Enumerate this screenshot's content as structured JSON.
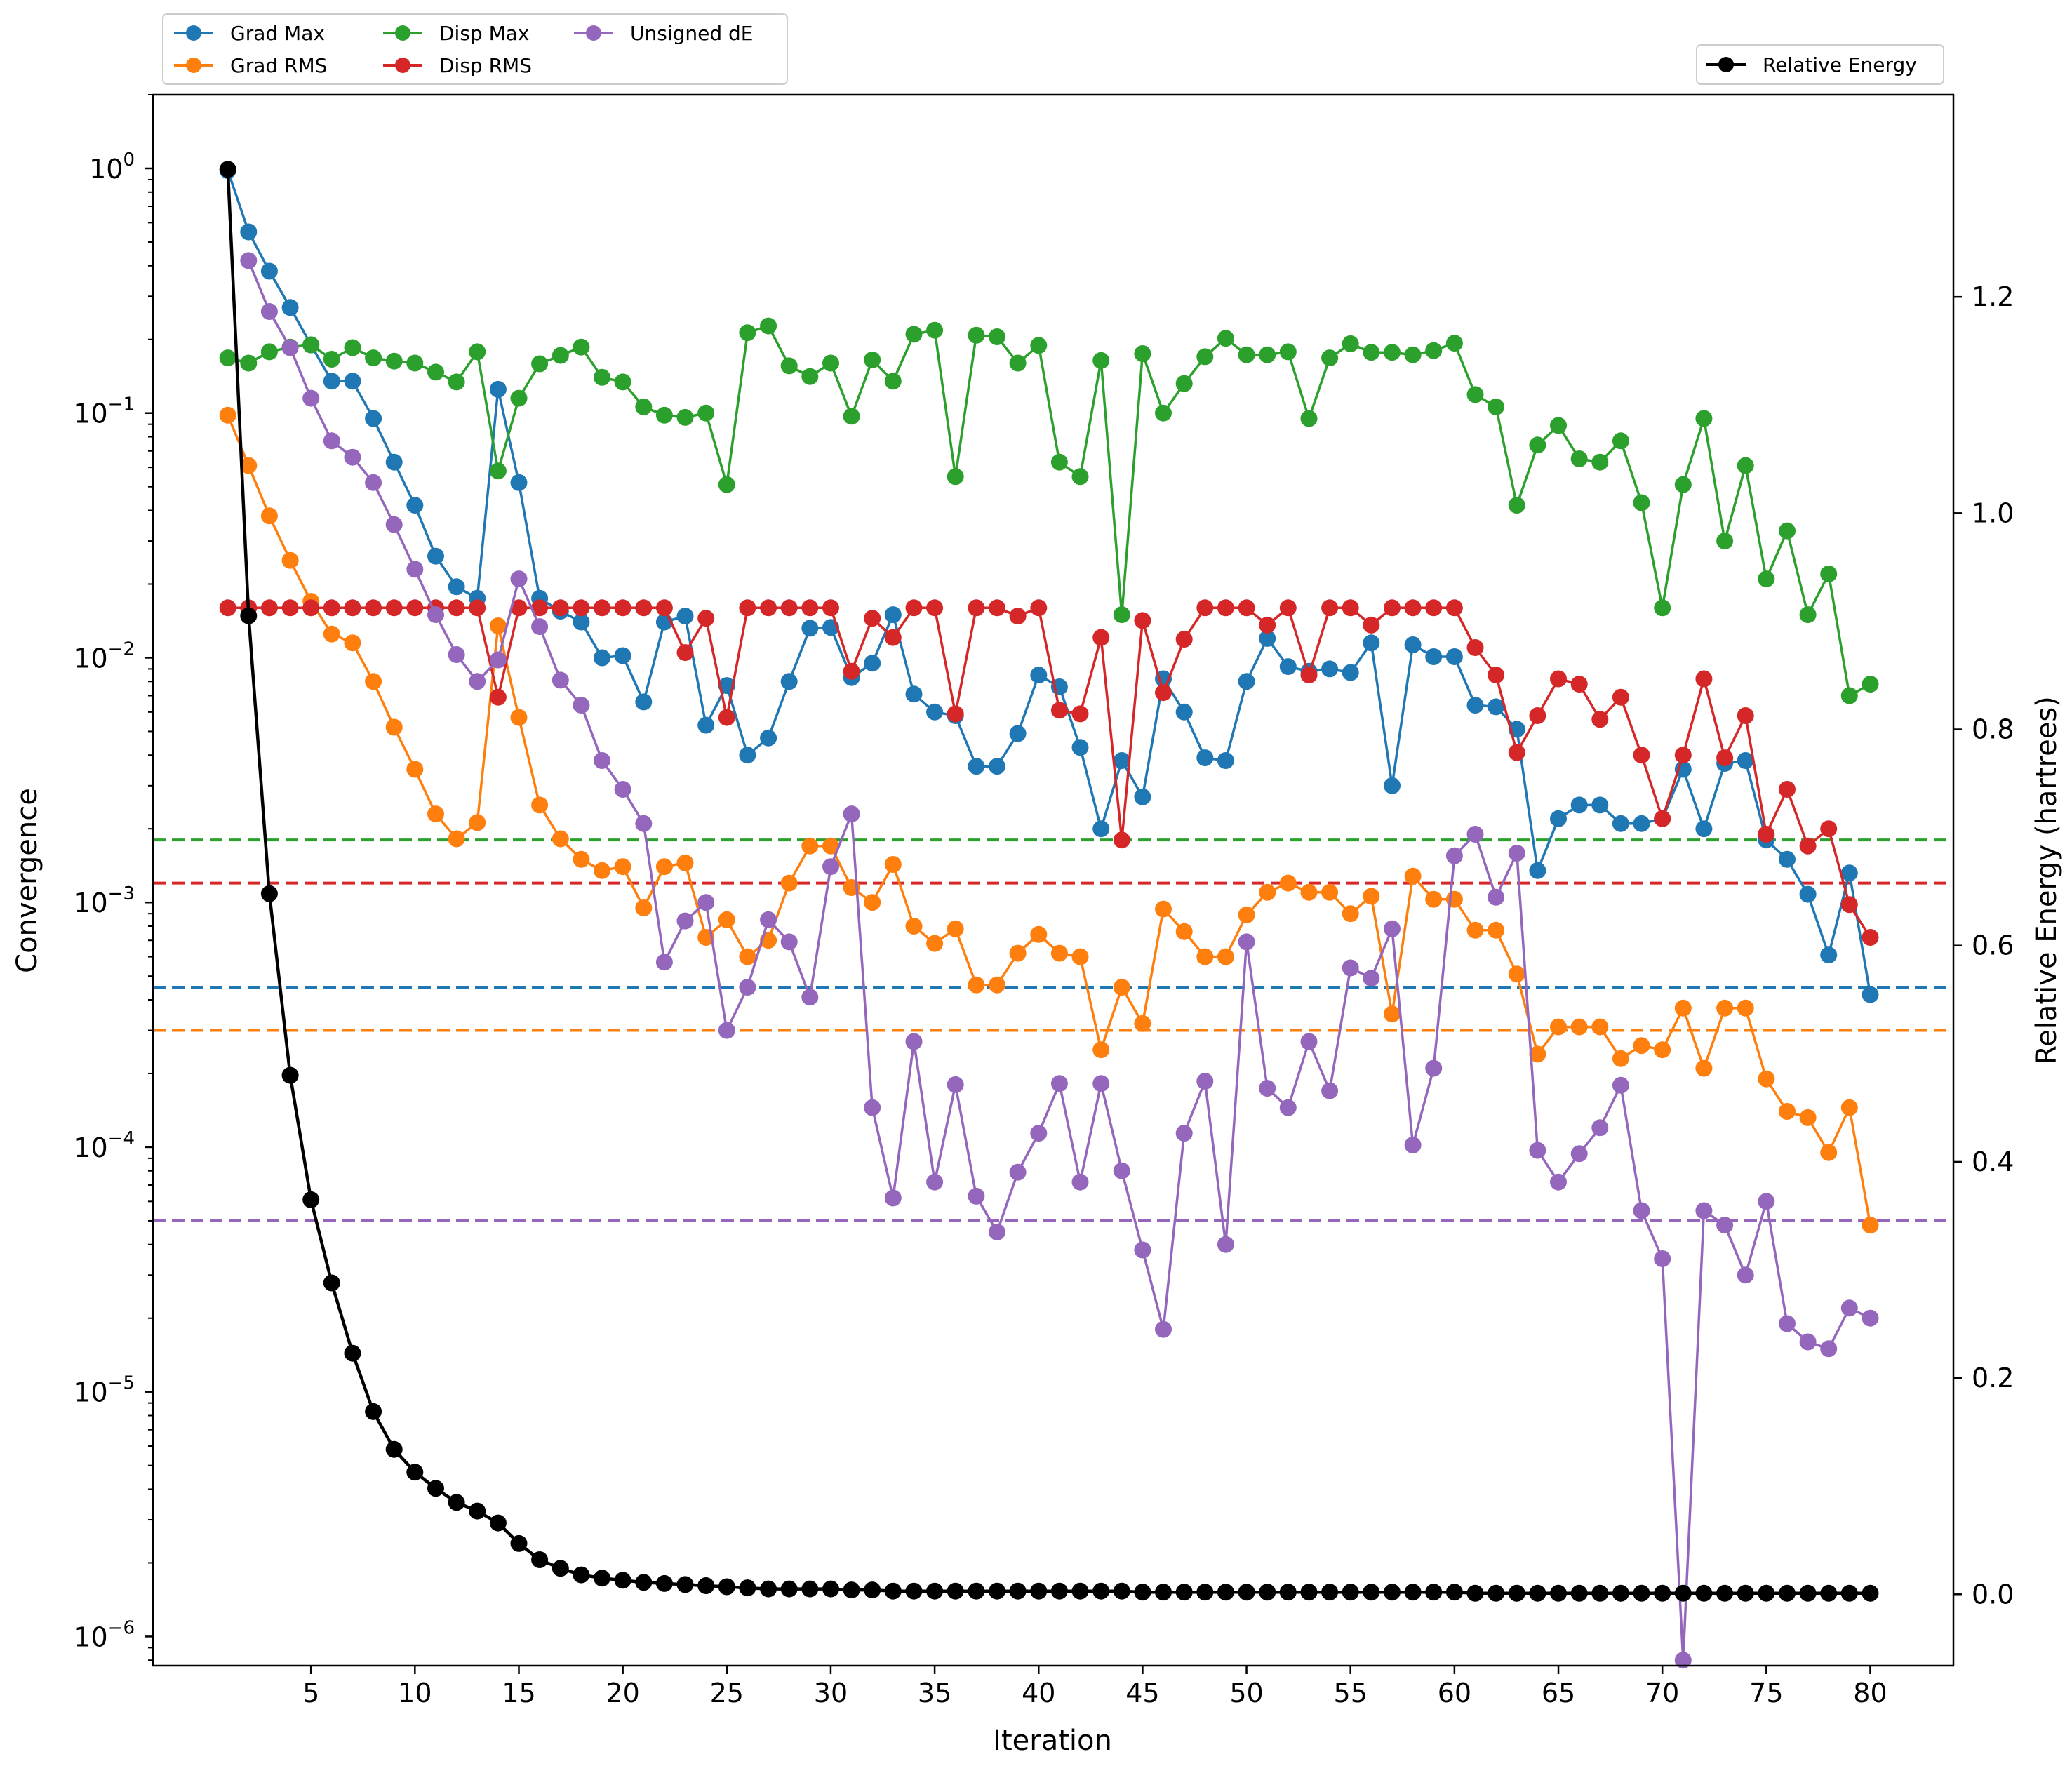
{
  "chart_data": {
    "type": "line",
    "xlabel": "Iteration",
    "ylabel_left": "Convergence",
    "ylabel_right": "Relative Energy (hartrees)",
    "left_scale": "log",
    "left_ylim": [
      7.6e-07,
      2.0
    ],
    "left_ticks": [
      {
        "base": "10",
        "exp": "0",
        "value": 1
      },
      {
        "base": "10",
        "exp": "−1",
        "value": 0.1
      },
      {
        "base": "10",
        "exp": "−2",
        "value": 0.01
      },
      {
        "base": "10",
        "exp": "−3",
        "value": 0.001
      },
      {
        "base": "10",
        "exp": "−4",
        "value": 0.0001
      },
      {
        "base": "10",
        "exp": "−5",
        "value": 1e-05
      },
      {
        "base": "10",
        "exp": "−6",
        "value": 1e-06
      }
    ],
    "right_ylim": [
      -0.066,
      1.387
    ],
    "right_ticks": [
      {
        "label": "0.0",
        "value": 0.0
      },
      {
        "label": "0.2",
        "value": 0.2
      },
      {
        "label": "0.4",
        "value": 0.4
      },
      {
        "label": "0.6",
        "value": 0.6
      },
      {
        "label": "0.8",
        "value": 0.8
      },
      {
        "label": "1.0",
        "value": 1.0
      },
      {
        "label": "1.2",
        "value": 1.2
      }
    ],
    "xlim": [
      -2.6,
      84.0
    ],
    "xticks": [
      5,
      10,
      15,
      20,
      25,
      30,
      35,
      40,
      45,
      50,
      55,
      60,
      65,
      70,
      75,
      80
    ],
    "xtick_labels": [
      "5",
      "10",
      "15",
      "20",
      "25",
      "30",
      "35",
      "40",
      "45",
      "50",
      "55",
      "60",
      "65",
      "70",
      "75",
      "80"
    ],
    "grid": false,
    "legend_left_placement": "above top-left",
    "legend_right_placement": "top-right",
    "x": [
      1,
      2,
      3,
      4,
      5,
      6,
      7,
      8,
      9,
      10,
      11,
      12,
      13,
      14,
      15,
      16,
      17,
      18,
      19,
      20,
      21,
      22,
      23,
      24,
      25,
      26,
      27,
      28,
      29,
      30,
      31,
      32,
      33,
      34,
      35,
      36,
      37,
      38,
      39,
      40,
      41,
      42,
      43,
      44,
      45,
      46,
      47,
      48,
      49,
      50,
      51,
      52,
      53,
      54,
      55,
      56,
      57,
      58,
      59,
      60,
      61,
      62,
      63,
      64,
      65,
      66,
      67,
      68,
      69,
      70,
      71,
      72,
      73,
      74,
      75,
      76,
      77,
      78,
      79,
      80
    ],
    "series": [
      {
        "name": "Grad Max",
        "color": "#1f77b4",
        "axis": "left",
        "legend_group": "left",
        "values": [
          0.98,
          0.55,
          0.38,
          0.27,
          0.19,
          0.135,
          0.135,
          0.095,
          0.063,
          0.042,
          0.026,
          0.0195,
          0.0175,
          0.125,
          0.052,
          0.0175,
          0.0155,
          0.014,
          0.01,
          0.0102,
          0.0066,
          0.014,
          0.0148,
          0.0053,
          0.0077,
          0.004,
          0.0047,
          0.008,
          0.0132,
          0.0133,
          0.0083,
          0.0095,
          0.015,
          0.0071,
          0.006,
          0.0058,
          0.0036,
          0.0036,
          0.0049,
          0.0085,
          0.0076,
          0.0043,
          0.002,
          0.0038,
          0.0027,
          0.0082,
          0.006,
          0.0039,
          0.0038,
          0.008,
          0.012,
          0.0092,
          0.0088,
          0.009,
          0.0087,
          0.0115,
          0.003,
          0.0113,
          0.0101,
          0.0101,
          0.0064,
          0.0063,
          0.0051,
          0.00135,
          0.0022,
          0.0025,
          0.0025,
          0.0021,
          0.0021,
          0.0022,
          0.0035,
          0.002,
          0.0037,
          0.0038,
          0.0018,
          0.0015,
          0.00108,
          0.00061,
          0.00132,
          0.00042
        ]
      },
      {
        "name": "Grad RMS",
        "color": "#ff7f0e",
        "axis": "left",
        "legend_group": "left",
        "values": [
          0.098,
          0.061,
          0.038,
          0.025,
          0.017,
          0.0125,
          0.0115,
          0.008,
          0.0052,
          0.0035,
          0.0023,
          0.00182,
          0.00212,
          0.0135,
          0.0057,
          0.0025,
          0.00182,
          0.0015,
          0.00135,
          0.0014,
          0.00095,
          0.0014,
          0.00145,
          0.00072,
          0.00085,
          0.0006,
          0.0007,
          0.0012,
          0.0017,
          0.0017,
          0.00115,
          0.001,
          0.00143,
          0.0008,
          0.00068,
          0.00078,
          0.00046,
          0.00046,
          0.00062,
          0.00074,
          0.00062,
          0.0006,
          0.00025,
          0.00045,
          0.00032,
          0.00094,
          0.00076,
          0.0006,
          0.0006,
          0.00089,
          0.0011,
          0.0012,
          0.0011,
          0.0011,
          0.0009,
          0.00106,
          0.00035,
          0.00128,
          0.00103,
          0.00103,
          0.00077,
          0.00077,
          0.00051,
          0.00024,
          0.00031,
          0.00031,
          0.00031,
          0.00023,
          0.00026,
          0.00025,
          0.00037,
          0.00021,
          0.00037,
          0.00037,
          0.00019,
          0.00014,
          0.000132,
          9.5e-05,
          0.000145,
          4.8e-05
        ]
      },
      {
        "name": "Disp Max",
        "color": "#2ca02c",
        "axis": "left",
        "legend_group": "left",
        "values": [
          0.168,
          0.16,
          0.178,
          0.186,
          0.19,
          0.166,
          0.185,
          0.168,
          0.163,
          0.16,
          0.147,
          0.134,
          0.178,
          0.058,
          0.115,
          0.159,
          0.172,
          0.186,
          0.14,
          0.134,
          0.106,
          0.098,
          0.096,
          0.1,
          0.051,
          0.213,
          0.227,
          0.156,
          0.141,
          0.16,
          0.097,
          0.165,
          0.135,
          0.21,
          0.218,
          0.055,
          0.208,
          0.205,
          0.16,
          0.189,
          0.063,
          0.055,
          0.164,
          0.015,
          0.175,
          0.1,
          0.132,
          0.17,
          0.202,
          0.173,
          0.173,
          0.178,
          0.095,
          0.168,
          0.192,
          0.177,
          0.177,
          0.173,
          0.18,
          0.193,
          0.119,
          0.106,
          0.042,
          0.074,
          0.089,
          0.065,
          0.063,
          0.077,
          0.043,
          0.016,
          0.051,
          0.095,
          0.03,
          0.061,
          0.021,
          0.033,
          0.015,
          0.022,
          0.007,
          0.0078
        ]
      },
      {
        "name": "Disp RMS",
        "color": "#d62728",
        "axis": "left",
        "legend_group": "left",
        "values": [
          0.016,
          0.016,
          0.016,
          0.016,
          0.016,
          0.016,
          0.016,
          0.016,
          0.016,
          0.016,
          0.016,
          0.016,
          0.016,
          0.0069,
          0.016,
          0.016,
          0.016,
          0.016,
          0.016,
          0.016,
          0.016,
          0.016,
          0.0105,
          0.0145,
          0.0057,
          0.016,
          0.016,
          0.016,
          0.016,
          0.016,
          0.0088,
          0.0145,
          0.0121,
          0.016,
          0.016,
          0.0059,
          0.016,
          0.016,
          0.0148,
          0.016,
          0.0061,
          0.0059,
          0.0121,
          0.0018,
          0.0142,
          0.0072,
          0.0119,
          0.016,
          0.016,
          0.016,
          0.0136,
          0.016,
          0.0085,
          0.016,
          0.016,
          0.0136,
          0.016,
          0.016,
          0.016,
          0.016,
          0.011,
          0.0085,
          0.0041,
          0.0058,
          0.0082,
          0.0078,
          0.0056,
          0.0069,
          0.004,
          0.0022,
          0.004,
          0.0082,
          0.0039,
          0.0058,
          0.0019,
          0.0029,
          0.0017,
          0.002,
          0.00098,
          0.00072
        ]
      },
      {
        "name": "Unsigned dE",
        "color": "#9467bd",
        "axis": "left",
        "legend_group": "left",
        "values": [
          null,
          0.42,
          0.26,
          0.185,
          0.115,
          0.077,
          0.066,
          0.052,
          0.035,
          0.023,
          0.015,
          0.0103,
          0.008,
          0.0098,
          0.021,
          0.0134,
          0.0081,
          0.0064,
          0.0038,
          0.0029,
          0.0021,
          0.00057,
          0.00084,
          0.001,
          0.0003,
          0.00045,
          0.00085,
          0.00069,
          0.00041,
          0.0014,
          0.0023,
          0.000145,
          6.2e-05,
          0.00027,
          7.2e-05,
          0.00018,
          6.3e-05,
          4.5e-05,
          7.9e-05,
          0.000114,
          0.000182,
          7.2e-05,
          0.000182,
          8e-05,
          3.8e-05,
          1.8e-05,
          0.000114,
          0.000186,
          4e-05,
          0.00069,
          0.000174,
          0.000145,
          0.00027,
          0.00017,
          0.00054,
          0.00049,
          0.00078,
          0.000102,
          0.00021,
          0.00155,
          0.0019,
          0.00105,
          0.00159,
          9.7e-05,
          7.2e-05,
          9.4e-05,
          0.00012,
          0.000179,
          5.5e-05,
          3.5e-05,
          8e-07,
          5.5e-05,
          4.8e-05,
          3e-05,
          6e-05,
          1.9e-05,
          1.6e-05,
          1.5e-05,
          2.2e-05,
          2e-05
        ]
      },
      {
        "name": "Relative Energy",
        "color": "#000000",
        "axis": "right",
        "legend_group": "right",
        "values": [
          1.318,
          0.905,
          0.648,
          0.48,
          0.365,
          0.288,
          0.223,
          0.169,
          0.134,
          0.113,
          0.098,
          0.085,
          0.077,
          0.066,
          0.047,
          0.032,
          0.024,
          0.018,
          0.015,
          0.013,
          0.011,
          0.01,
          0.009,
          0.008,
          0.007,
          0.006,
          0.005,
          0.005,
          0.005,
          0.005,
          0.004,
          0.004,
          0.003,
          0.003,
          0.003,
          0.003,
          0.003,
          0.003,
          0.003,
          0.003,
          0.003,
          0.003,
          0.003,
          0.003,
          0.002,
          0.002,
          0.002,
          0.002,
          0.002,
          0.002,
          0.002,
          0.002,
          0.002,
          0.002,
          0.002,
          0.002,
          0.002,
          0.002,
          0.002,
          0.002,
          0.001,
          0.001,
          0.001,
          0.001,
          0.001,
          0.001,
          0.001,
          0.001,
          0.001,
          0.001,
          0.001,
          0.001,
          0.001,
          0.001,
          0.001,
          0.001,
          0.001,
          0.001,
          0.001,
          0.001
        ]
      }
    ],
    "thresholds": [
      {
        "series": "Disp Max",
        "color": "#2ca02c",
        "value": 0.0018
      },
      {
        "series": "Disp RMS",
        "color": "#d62728",
        "value": 0.0012
      },
      {
        "series": "Grad Max",
        "color": "#1f77b4",
        "value": 0.00045
      },
      {
        "series": "Grad RMS",
        "color": "#ff7f0e",
        "value": 0.0003
      },
      {
        "series": "Unsigned dE",
        "color": "#9467bd",
        "value": 5e-05
      }
    ]
  }
}
